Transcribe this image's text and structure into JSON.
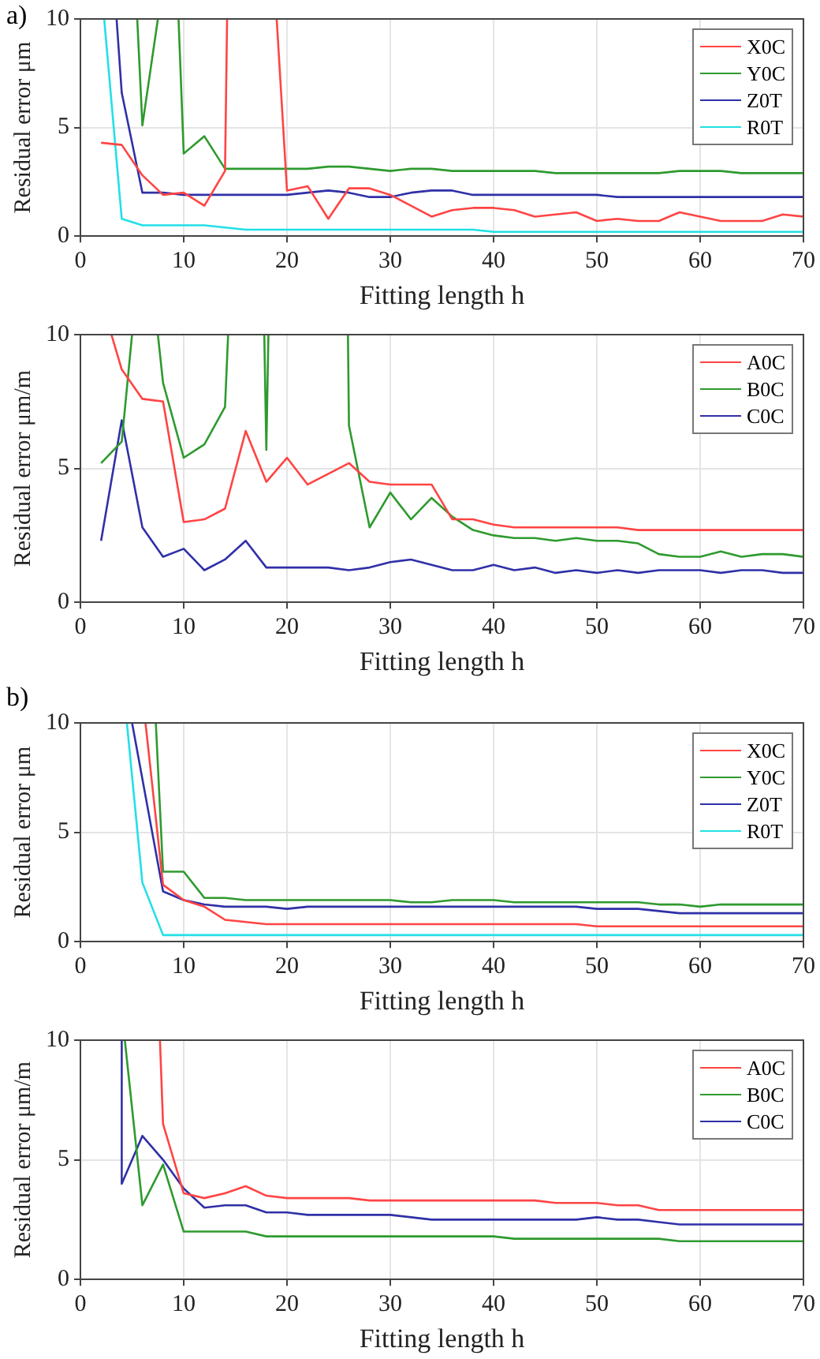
{
  "chart_data": [
    {
      "type": "line",
      "annotations": [
        "a)"
      ],
      "xlabel": "Fitting length h",
      "ylabel": "Residual error μm",
      "xlim": [
        0,
        70
      ],
      "ylim": [
        0,
        10
      ],
      "xticks": [
        0,
        10,
        20,
        30,
        40,
        50,
        60,
        70
      ],
      "yticks": [
        0,
        5,
        10
      ],
      "grid": true,
      "legend": "top right",
      "marker": "none",
      "series": [
        {
          "name": "X0C",
          "color": "#ff4444",
          "x": [
            2,
            4,
            6,
            8,
            10,
            12,
            14,
            14.2,
            16,
            19,
            20,
            22,
            24,
            26,
            28,
            30,
            32,
            34,
            36,
            38,
            40,
            42,
            44,
            46,
            48,
            50,
            52,
            54,
            56,
            58,
            60,
            62,
            64,
            66,
            68,
            70
          ],
          "values": [
            4.3,
            4.2,
            2.8,
            1.9,
            2.0,
            1.4,
            3.0,
            10,
            null,
            10,
            2.1,
            2.3,
            0.8,
            2.2,
            2.2,
            1.9,
            1.4,
            0.9,
            1.2,
            1.3,
            1.3,
            1.2,
            0.9,
            1.0,
            1.1,
            0.7,
            0.8,
            0.7,
            0.7,
            1.1,
            0.9,
            0.7,
            0.7,
            0.7,
            1.0,
            0.9
          ]
        },
        {
          "name": "Y0C",
          "color": "#2e9a2e",
          "x": [
            5.5,
            6,
            7.5,
            8,
            9.5,
            10,
            12,
            14,
            16,
            18,
            20,
            22,
            24,
            26,
            28,
            30,
            32,
            34,
            36,
            38,
            40,
            42,
            44,
            46,
            48,
            50,
            52,
            54,
            56,
            58,
            60,
            62,
            64,
            66,
            68,
            70
          ],
          "values": [
            10,
            5.1,
            10,
            null,
            10,
            3.8,
            4.6,
            3.1,
            3.1,
            3.1,
            3.1,
            3.1,
            3.2,
            3.2,
            3.1,
            3.0,
            3.1,
            3.1,
            3.0,
            3.0,
            3.0,
            3.0,
            3.0,
            2.9,
            2.9,
            2.9,
            2.9,
            2.9,
            2.9,
            3.0,
            3.0,
            3.0,
            2.9,
            2.9,
            2.9,
            2.9
          ]
        },
        {
          "name": "Z0T",
          "color": "#3030a8",
          "x": [
            3.5,
            4,
            6,
            8,
            10,
            12,
            14,
            16,
            18,
            20,
            22,
            24,
            26,
            28,
            30,
            32,
            34,
            36,
            38,
            40,
            42,
            44,
            46,
            48,
            50,
            52,
            54,
            56,
            58,
            60,
            62,
            64,
            66,
            68,
            70
          ],
          "values": [
            10,
            6.6,
            2.0,
            2.0,
            1.9,
            1.9,
            1.9,
            1.9,
            1.9,
            1.9,
            2.0,
            2.1,
            2.0,
            1.8,
            1.8,
            2.0,
            2.1,
            2.1,
            1.9,
            1.9,
            1.9,
            1.9,
            1.9,
            1.9,
            1.9,
            1.8,
            1.8,
            1.8,
            1.8,
            1.8,
            1.8,
            1.8,
            1.8,
            1.8,
            1.8
          ]
        },
        {
          "name": "R0T",
          "color": "#22e0e6",
          "x": [
            2.3,
            4,
            6,
            8,
            10,
            12,
            14,
            16,
            18,
            20,
            22,
            24,
            26,
            28,
            30,
            32,
            34,
            36,
            38,
            40,
            42,
            44,
            46,
            48,
            50,
            52,
            54,
            56,
            58,
            60,
            62,
            64,
            66,
            68,
            70
          ],
          "values": [
            10,
            0.8,
            0.5,
            0.5,
            0.5,
            0.5,
            0.4,
            0.3,
            0.3,
            0.3,
            0.3,
            0.3,
            0.3,
            0.3,
            0.3,
            0.3,
            0.3,
            0.3,
            0.3,
            0.2,
            0.2,
            0.2,
            0.2,
            0.2,
            0.2,
            0.2,
            0.2,
            0.2,
            0.2,
            0.2,
            0.2,
            0.2,
            0.2,
            0.2,
            0.2
          ]
        }
      ]
    },
    {
      "type": "line",
      "xlabel": "Fitting length h",
      "ylabel": "Residual error μm/m",
      "xlim": [
        0,
        70
      ],
      "ylim": [
        0,
        10
      ],
      "xticks": [
        0,
        10,
        20,
        30,
        40,
        50,
        60,
        70
      ],
      "yticks": [
        0,
        5,
        10
      ],
      "grid": true,
      "legend": "top right",
      "marker": "none",
      "series": [
        {
          "name": "A0C",
          "color": "#ff4444",
          "x": [
            3,
            4,
            6,
            8,
            10,
            12,
            14,
            16,
            18,
            20,
            22,
            24,
            26,
            28,
            30,
            32,
            34,
            36,
            38,
            40,
            42,
            44,
            46,
            48,
            50,
            52,
            54,
            56,
            58,
            60,
            62,
            64,
            66,
            68,
            70
          ],
          "values": [
            10,
            8.7,
            7.6,
            7.5,
            3.0,
            3.1,
            3.5,
            6.4,
            4.5,
            5.4,
            4.4,
            4.8,
            5.2,
            4.5,
            4.4,
            4.4,
            4.4,
            3.1,
            3.1,
            2.9,
            2.8,
            2.8,
            2.8,
            2.8,
            2.8,
            2.8,
            2.7,
            2.7,
            2.7,
            2.7,
            2.7,
            2.7,
            2.7,
            2.7,
            2.7
          ]
        },
        {
          "name": "B0C",
          "color": "#2e9a2e",
          "x": [
            2,
            4,
            5,
            6,
            7.5,
            8,
            10,
            12,
            14,
            14.3,
            16,
            17.8,
            18,
            18.2,
            22,
            25.9,
            26,
            28,
            30,
            32,
            34,
            36,
            38,
            40,
            42,
            44,
            46,
            48,
            50,
            52,
            54,
            56,
            58,
            60,
            62,
            64,
            66,
            68,
            70
          ],
          "values": [
            5.2,
            6.0,
            10,
            null,
            10,
            8.2,
            5.4,
            5.9,
            7.3,
            10,
            null,
            10,
            5.7,
            10,
            null,
            10,
            6.6,
            2.8,
            4.1,
            3.1,
            3.9,
            3.2,
            2.7,
            2.5,
            2.4,
            2.4,
            2.3,
            2.4,
            2.3,
            2.3,
            2.2,
            1.8,
            1.7,
            1.7,
            1.9,
            1.7,
            1.8,
            1.8,
            1.7
          ]
        },
        {
          "name": "C0C",
          "color": "#3030a8",
          "x": [
            2,
            4,
            6,
            8,
            10,
            12,
            14,
            16,
            18,
            20,
            22,
            24,
            26,
            28,
            30,
            32,
            34,
            36,
            38,
            40,
            42,
            44,
            46,
            48,
            50,
            52,
            54,
            56,
            58,
            60,
            62,
            64,
            66,
            68,
            70
          ],
          "values": [
            2.3,
            6.8,
            2.8,
            1.7,
            2.0,
            1.2,
            1.6,
            2.3,
            1.3,
            1.3,
            1.3,
            1.3,
            1.2,
            1.3,
            1.5,
            1.6,
            1.4,
            1.2,
            1.2,
            1.4,
            1.2,
            1.3,
            1.1,
            1.2,
            1.1,
            1.2,
            1.1,
            1.2,
            1.2,
            1.2,
            1.1,
            1.2,
            1.2,
            1.1,
            1.1
          ]
        }
      ]
    },
    {
      "type": "line",
      "annotations": [
        "b)"
      ],
      "xlabel": "Fitting length h",
      "ylabel": "Residual error μm",
      "xlim": [
        0,
        70
      ],
      "ylim": [
        0,
        10
      ],
      "xticks": [
        0,
        10,
        20,
        30,
        40,
        50,
        60,
        70
      ],
      "yticks": [
        0,
        5,
        10
      ],
      "grid": true,
      "legend": "top right",
      "marker": "none",
      "series": [
        {
          "name": "X0C",
          "color": "#ff4444",
          "x": [
            6.3,
            8,
            10,
            12,
            14,
            16,
            18,
            20,
            22,
            24,
            26,
            28,
            30,
            32,
            34,
            36,
            38,
            40,
            42,
            44,
            46,
            48,
            50,
            52,
            54,
            56,
            58,
            60,
            62,
            64,
            66,
            68,
            70
          ],
          "values": [
            10,
            2.6,
            1.9,
            1.6,
            1.0,
            0.9,
            0.8,
            0.8,
            0.8,
            0.8,
            0.8,
            0.8,
            0.8,
            0.8,
            0.8,
            0.8,
            0.8,
            0.8,
            0.8,
            0.8,
            0.8,
            0.8,
            0.7,
            0.7,
            0.7,
            0.7,
            0.7,
            0.7,
            0.7,
            0.7,
            0.7,
            0.7,
            0.7
          ]
        },
        {
          "name": "Y0C",
          "color": "#2e9a2e",
          "x": [
            7.3,
            8,
            10,
            12,
            14,
            16,
            18,
            20,
            22,
            24,
            26,
            28,
            30,
            32,
            34,
            36,
            38,
            40,
            42,
            44,
            46,
            48,
            50,
            52,
            54,
            56,
            58,
            60,
            62,
            64,
            66,
            68,
            70
          ],
          "values": [
            10,
            3.2,
            3.2,
            2.0,
            2.0,
            1.9,
            1.9,
            1.9,
            1.9,
            1.9,
            1.9,
            1.9,
            1.9,
            1.8,
            1.8,
            1.9,
            1.9,
            1.9,
            1.8,
            1.8,
            1.8,
            1.8,
            1.8,
            1.8,
            1.8,
            1.7,
            1.7,
            1.6,
            1.7,
            1.7,
            1.7,
            1.7,
            1.7
          ]
        },
        {
          "name": "Z0T",
          "color": "#3030a8",
          "x": [
            5,
            8,
            10,
            12,
            14,
            16,
            18,
            20,
            22,
            24,
            26,
            28,
            30,
            32,
            34,
            36,
            38,
            40,
            42,
            44,
            46,
            48,
            50,
            52,
            54,
            56,
            58,
            60,
            62,
            64,
            66,
            68,
            70
          ],
          "values": [
            10,
            2.3,
            1.9,
            1.7,
            1.6,
            1.6,
            1.6,
            1.5,
            1.6,
            1.6,
            1.6,
            1.6,
            1.6,
            1.6,
            1.6,
            1.6,
            1.6,
            1.6,
            1.6,
            1.6,
            1.6,
            1.6,
            1.5,
            1.5,
            1.5,
            1.4,
            1.3,
            1.3,
            1.3,
            1.3,
            1.3,
            1.3,
            1.3
          ]
        },
        {
          "name": "R0T",
          "color": "#22e0e6",
          "x": [
            4.5,
            6,
            8,
            10,
            12,
            14,
            16,
            18,
            20,
            22,
            24,
            26,
            28,
            30,
            32,
            34,
            36,
            38,
            40,
            42,
            44,
            46,
            48,
            50,
            52,
            54,
            56,
            58,
            60,
            62,
            64,
            66,
            68,
            70
          ],
          "values": [
            10,
            2.7,
            0.3,
            0.3,
            0.3,
            0.3,
            0.3,
            0.3,
            0.3,
            0.3,
            0.3,
            0.3,
            0.3,
            0.3,
            0.3,
            0.3,
            0.3,
            0.3,
            0.3,
            0.3,
            0.3,
            0.3,
            0.3,
            0.3,
            0.3,
            0.3,
            0.3,
            0.3,
            0.3,
            0.3,
            0.3,
            0.3,
            0.3,
            0.3
          ]
        }
      ]
    },
    {
      "type": "line",
      "xlabel": "Fitting length h",
      "ylabel": "Residual error μm/m",
      "xlim": [
        0,
        70
      ],
      "ylim": [
        0,
        10
      ],
      "xticks": [
        0,
        10,
        20,
        30,
        40,
        50,
        60,
        70
      ],
      "yticks": [
        0,
        5,
        10
      ],
      "grid": true,
      "legend": "top right",
      "marker": "none",
      "series": [
        {
          "name": "A0C",
          "color": "#ff4444",
          "x": [
            7.7,
            8,
            10,
            12,
            14,
            16,
            18,
            20,
            22,
            24,
            26,
            28,
            30,
            32,
            34,
            36,
            38,
            40,
            42,
            44,
            46,
            48,
            50,
            52,
            54,
            56,
            58,
            60,
            62,
            64,
            66,
            68,
            70
          ],
          "values": [
            10,
            6.5,
            3.6,
            3.4,
            3.6,
            3.9,
            3.5,
            3.4,
            3.4,
            3.4,
            3.4,
            3.3,
            3.3,
            3.3,
            3.3,
            3.3,
            3.3,
            3.3,
            3.3,
            3.3,
            3.2,
            3.2,
            3.2,
            3.1,
            3.1,
            2.9,
            2.9,
            2.9,
            2.9,
            2.9,
            2.9,
            2.9,
            2.9
          ]
        },
        {
          "name": "B0C",
          "color": "#2e9a2e",
          "x": [
            4.3,
            6,
            8,
            10,
            12,
            14,
            16,
            18,
            20,
            22,
            24,
            26,
            28,
            30,
            32,
            34,
            36,
            38,
            40,
            42,
            44,
            46,
            48,
            50,
            52,
            54,
            56,
            58,
            60,
            62,
            64,
            66,
            68,
            70
          ],
          "values": [
            10,
            3.1,
            4.8,
            2.0,
            2.0,
            2.0,
            2.0,
            1.8,
            1.8,
            1.8,
            1.8,
            1.8,
            1.8,
            1.8,
            1.8,
            1.8,
            1.8,
            1.8,
            1.8,
            1.7,
            1.7,
            1.7,
            1.7,
            1.7,
            1.7,
            1.7,
            1.7,
            1.6,
            1.6,
            1.6,
            1.6,
            1.6,
            1.6,
            1.6
          ]
        },
        {
          "name": "C0C",
          "color": "#3030a8",
          "x": [
            4,
            4,
            6,
            8,
            10,
            12,
            14,
            16,
            18,
            20,
            22,
            24,
            26,
            28,
            30,
            32,
            34,
            36,
            38,
            40,
            42,
            44,
            46,
            48,
            50,
            52,
            54,
            56,
            58,
            60,
            62,
            64,
            66,
            68,
            70
          ],
          "values": [
            10,
            4.0,
            6.0,
            5.0,
            3.8,
            3.0,
            3.1,
            3.1,
            2.8,
            2.8,
            2.7,
            2.7,
            2.7,
            2.7,
            2.7,
            2.6,
            2.5,
            2.5,
            2.5,
            2.5,
            2.5,
            2.5,
            2.5,
            2.5,
            2.6,
            2.5,
            2.5,
            2.4,
            2.3,
            2.3,
            2.3,
            2.3,
            2.3,
            2.3,
            2.3
          ]
        }
      ]
    }
  ]
}
